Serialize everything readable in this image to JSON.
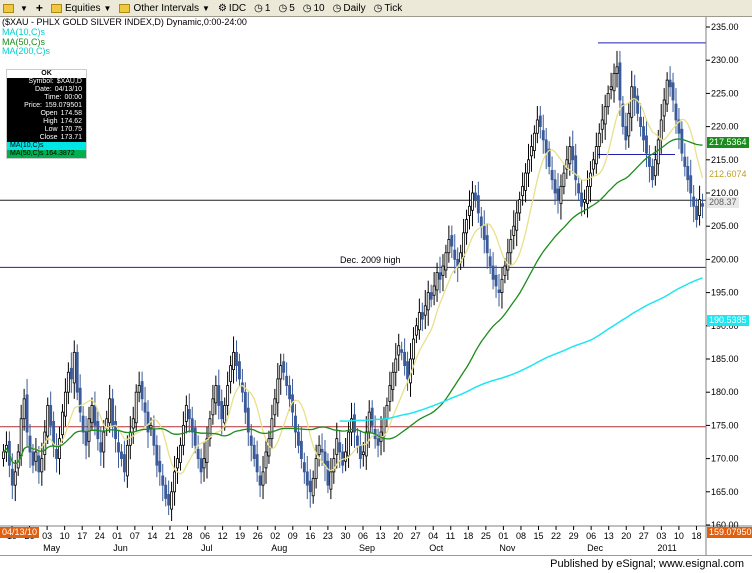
{
  "toolbar": {
    "equities_label": "Equities",
    "intervals_label": "Other Intervals",
    "btn_idc": "IDC",
    "btn_1": "1",
    "btn_5": "5",
    "btn_10": "10",
    "btn_daily": "Daily",
    "btn_tick": "Tick"
  },
  "chart": {
    "header": "($XAU - PHLX GOLD SILVER INDEX,D) Dynamic,0:00-24:00",
    "legend": {
      "ma10": "MA(10,C)s",
      "ma50": "MA(50,C)s",
      "ma200": "MA(200,C)s"
    },
    "infobox": {
      "ok": "OK",
      "symbol": "$XAU,D",
      "date": "04/13/10",
      "time": "00:00",
      "price": "159.079501",
      "open": "174.58",
      "high": "174.62",
      "low": "170.75",
      "close": "173.71",
      "ma10_value": "MA(10,C)s",
      "ma50_value": "MA(50,C)s 164.3872"
    },
    "annotation": "Dec. 2009 high",
    "price_labels": {
      "ma50": "217.5364",
      "ma10": "212.6074",
      "last": "208.37",
      "ma200": "190.5385",
      "cursor_price": "159.079501",
      "cursor_date": "04/13/10"
    },
    "y_ticks": [
      "235.00",
      "230.00",
      "225.00",
      "220.00",
      "215.00",
      "210.00",
      "205.00",
      "200.00",
      "195.00",
      "190.00",
      "185.00",
      "180.00",
      "175.00",
      "170.00",
      "165.00",
      "160.00"
    ],
    "x_day_ticks": [
      "19",
      "26",
      "03",
      "10",
      "17",
      "24",
      "01",
      "07",
      "14",
      "21",
      "28",
      "06",
      "12",
      "19",
      "26",
      "02",
      "09",
      "16",
      "23",
      "30",
      "06",
      "13",
      "20",
      "27",
      "04",
      "11",
      "18",
      "25",
      "01",
      "08",
      "15",
      "22",
      "29",
      "06",
      "13",
      "20",
      "27",
      "03",
      "10",
      "18"
    ],
    "month_labels": [
      "May",
      "Jun",
      "Jul",
      "Aug",
      "Sep",
      "Oct",
      "Nov",
      "Dec",
      "2011"
    ],
    "colors": {
      "ma10": "#e8e08a",
      "ma50": "#1c8c1c",
      "ma200": "#1ee6f0",
      "bull": "#000000",
      "bear": "#3a5a9a",
      "hline_blue": "#2020b0",
      "hline_red": "#b03030",
      "hline_black": "#202020"
    }
  },
  "chart_data": {
    "type": "candlestick",
    "title": "($XAU - PHLX GOLD SILVER INDEX,D) Dynamic,0:00-24:00",
    "ylim": [
      160,
      235
    ],
    "series_close": [
      171,
      172,
      169,
      166,
      168,
      171,
      176,
      179,
      174,
      171,
      169,
      171,
      168,
      170,
      174,
      178,
      175,
      172,
      170,
      173,
      177,
      180,
      183,
      182,
      186,
      180,
      177,
      174,
      172,
      176,
      178,
      175,
      173,
      171,
      174,
      176,
      179,
      175,
      173,
      171,
      170,
      168,
      172,
      174,
      176,
      180,
      181,
      179,
      177,
      174,
      175,
      172,
      169,
      168,
      166,
      164,
      163,
      165,
      168,
      170,
      172,
      175,
      178,
      176,
      174,
      172,
      170,
      168,
      170,
      173,
      176,
      179,
      181,
      178,
      176,
      178,
      181,
      184,
      186,
      184,
      182,
      180,
      177,
      174,
      172,
      170,
      168,
      166,
      168,
      171,
      173,
      176,
      179,
      182,
      184,
      183,
      181,
      179,
      177,
      174,
      172,
      170,
      168,
      166,
      165,
      167,
      170,
      172,
      171,
      169,
      166,
      168,
      170,
      173,
      171,
      169,
      171,
      174,
      176,
      174,
      172,
      170,
      171,
      174,
      177,
      175,
      173,
      172,
      174,
      176,
      178,
      181,
      183,
      185,
      187,
      186,
      184,
      182,
      185,
      188,
      190,
      192,
      191,
      193,
      195,
      194,
      196,
      198,
      197,
      199,
      201,
      203,
      202,
      200,
      199,
      201,
      204,
      206,
      208,
      210,
      209,
      207,
      205,
      203,
      201,
      199,
      197,
      196,
      195,
      197,
      199,
      201,
      203,
      205,
      207,
      209,
      211,
      213,
      215,
      217,
      219,
      221,
      220,
      218,
      216,
      214,
      212,
      210,
      209,
      211,
      213,
      215,
      217,
      215,
      212,
      210,
      208,
      209,
      211,
      213,
      215,
      217,
      219,
      221,
      223,
      225,
      226,
      228,
      229,
      224,
      220,
      218,
      222,
      226,
      224,
      222,
      220,
      218,
      216,
      214,
      212,
      215,
      218,
      221,
      224,
      227,
      226,
      224,
      221,
      219,
      216,
      214,
      212,
      210,
      208,
      206,
      209,
      208
    ],
    "horizontal_lines": [
      {
        "label": "Dec. 2009 high",
        "value": 198.8
      },
      {
        "value": 232.6
      },
      {
        "value": 215.8
      },
      {
        "value": 208.9
      },
      {
        "value": 174.8
      }
    ],
    "moving_averages": {
      "ma50_last": 217.5364,
      "ma10_last": 212.6074,
      "ma200_last": 190.5385
    },
    "last_price": 208.37
  }
}
